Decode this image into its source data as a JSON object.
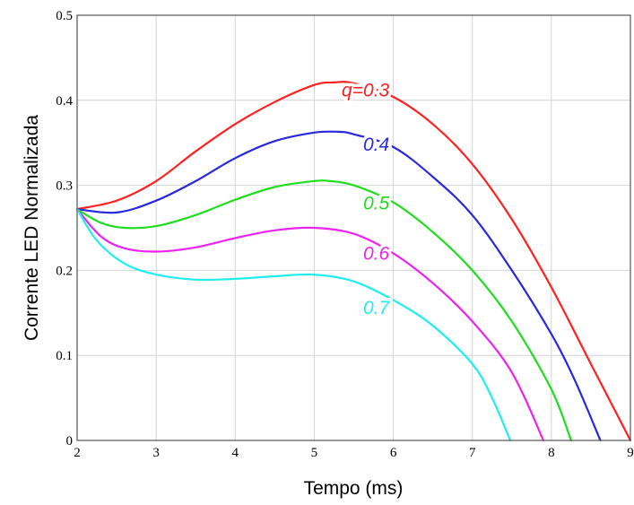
{
  "chart_data": {
    "type": "line",
    "title": "",
    "xlabel": "Tempo (ms)",
    "ylabel": "Corrente LED Normalizada",
    "xlim": [
      2,
      9
    ],
    "ylim": [
      0,
      0.5
    ],
    "x_ticks": [
      "2",
      "3",
      "4",
      "5",
      "6",
      "7",
      "8",
      "9"
    ],
    "y_ticks": [
      "0",
      "0.1",
      "0.2",
      "0.3",
      "0.4",
      "0.5"
    ],
    "grid": true,
    "legend": "inline curve labels",
    "series": [
      {
        "name": "q=0.3",
        "color": "#ff2020",
        "label_at": [
          5.95,
          0.412
        ],
        "points": [
          [
            2,
            0.272
          ],
          [
            2.5,
            0.282
          ],
          [
            3,
            0.305
          ],
          [
            3.5,
            0.34
          ],
          [
            4,
            0.372
          ],
          [
            4.5,
            0.398
          ],
          [
            5,
            0.418
          ],
          [
            5.25,
            0.421
          ],
          [
            5.5,
            0.42
          ],
          [
            6,
            0.404
          ],
          [
            6.5,
            0.372
          ],
          [
            7,
            0.325
          ],
          [
            7.5,
            0.26
          ],
          [
            8,
            0.18
          ],
          [
            8.5,
            0.09
          ],
          [
            9,
            0.0
          ]
        ]
      },
      {
        "name": "0.4",
        "color": "#2828dd",
        "label_at": [
          5.95,
          0.348
        ],
        "points": [
          [
            2,
            0.272
          ],
          [
            2.5,
            0.268
          ],
          [
            3,
            0.282
          ],
          [
            3.5,
            0.305
          ],
          [
            4,
            0.332
          ],
          [
            4.5,
            0.352
          ],
          [
            5,
            0.362
          ],
          [
            5.3,
            0.363
          ],
          [
            5.5,
            0.36
          ],
          [
            6,
            0.345
          ],
          [
            6.5,
            0.31
          ],
          [
            7,
            0.265
          ],
          [
            7.5,
            0.2
          ],
          [
            8,
            0.125
          ],
          [
            8.3,
            0.07
          ],
          [
            8.62,
            0.0
          ]
        ]
      },
      {
        "name": "0.5",
        "color": "#20dd20",
        "label_at": [
          5.95,
          0.279
        ],
        "points": [
          [
            2,
            0.272
          ],
          [
            2.3,
            0.256
          ],
          [
            2.6,
            0.25
          ],
          [
            3,
            0.252
          ],
          [
            3.5,
            0.265
          ],
          [
            4,
            0.283
          ],
          [
            4.5,
            0.298
          ],
          [
            5,
            0.305
          ],
          [
            5.2,
            0.305
          ],
          [
            5.5,
            0.3
          ],
          [
            6,
            0.28
          ],
          [
            6.5,
            0.245
          ],
          [
            7,
            0.2
          ],
          [
            7.5,
            0.14
          ],
          [
            8,
            0.06
          ],
          [
            8.25,
            0.0
          ]
        ]
      },
      {
        "name": "0.6",
        "color": "#ee22ee",
        "label_at": [
          5.95,
          0.22
        ],
        "points": [
          [
            2,
            0.272
          ],
          [
            2.3,
            0.24
          ],
          [
            2.6,
            0.226
          ],
          [
            3,
            0.222
          ],
          [
            3.5,
            0.227
          ],
          [
            4,
            0.238
          ],
          [
            4.5,
            0.247
          ],
          [
            5,
            0.25
          ],
          [
            5.5,
            0.243
          ],
          [
            6,
            0.22
          ],
          [
            6.5,
            0.185
          ],
          [
            7,
            0.14
          ],
          [
            7.5,
            0.08
          ],
          [
            7.9,
            0.0
          ]
        ]
      },
      {
        "name": "0.7",
        "color": "#20eeee",
        "label_at": [
          5.95,
          0.156
        ],
        "points": [
          [
            2,
            0.272
          ],
          [
            2.25,
            0.235
          ],
          [
            2.6,
            0.208
          ],
          [
            3,
            0.195
          ],
          [
            3.5,
            0.189
          ],
          [
            4,
            0.19
          ],
          [
            4.5,
            0.193
          ],
          [
            5,
            0.195
          ],
          [
            5.5,
            0.187
          ],
          [
            6,
            0.165
          ],
          [
            6.5,
            0.135
          ],
          [
            7,
            0.09
          ],
          [
            7.25,
            0.05
          ],
          [
            7.48,
            0.0
          ]
        ]
      }
    ]
  }
}
